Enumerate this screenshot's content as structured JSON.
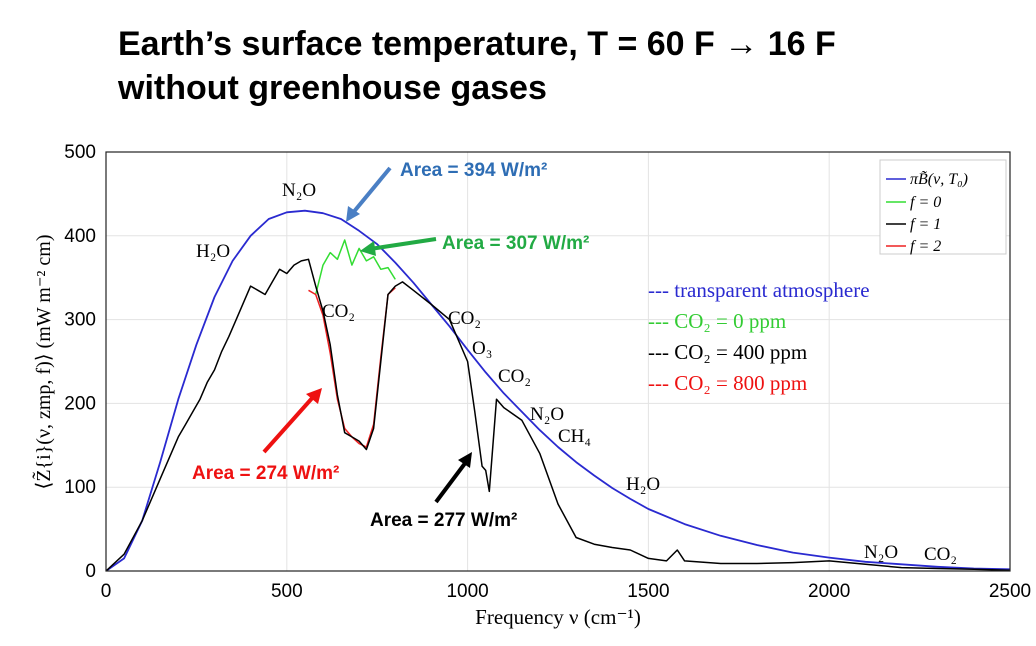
{
  "title": {
    "line1": "Earth’s surface temperature, T = 60 F → 16 F",
    "line2": "without greenhouse gases"
  },
  "chart_data": {
    "type": "line",
    "xlabel": "Frequency ν (cm⁻¹)",
    "ylabel": "⟨Z̃{i}(ν, zmp, f)⟩ (mW m⁻² cm)",
    "xlim": [
      0,
      2500
    ],
    "ylim": [
      0,
      500
    ],
    "x_ticks": [
      "0",
      "500",
      "1000",
      "1500",
      "2000",
      "2500"
    ],
    "y_ticks": [
      "0",
      "100",
      "200",
      "300",
      "400",
      "500"
    ],
    "grid": true,
    "legend_position": "top-right",
    "legend": [
      {
        "label": "πB̃(ν, T₀)",
        "color": "#2a2ad0"
      },
      {
        "label": "f = 0",
        "color": "#33dd33"
      },
      {
        "label": "f = 1",
        "color": "#000000"
      },
      {
        "label": "f = 2",
        "color": "#ee2222"
      }
    ],
    "series": [
      {
        "name": "πB̃(ν, T₀)",
        "color": "#2a2ad0",
        "x": [
          0,
          50,
          100,
          150,
          200,
          250,
          300,
          350,
          400,
          450,
          500,
          550,
          600,
          650,
          700,
          750,
          800,
          850,
          900,
          950,
          1000,
          1050,
          1100,
          1150,
          1200,
          1250,
          1300,
          1350,
          1400,
          1450,
          1500,
          1600,
          1700,
          1800,
          1900,
          2000,
          2100,
          2200,
          2300,
          2400,
          2500
        ],
        "y": [
          0,
          15,
          60,
          130,
          205,
          270,
          327,
          370,
          400,
          420,
          428,
          430,
          427,
          420,
          406,
          390,
          368,
          344,
          318,
          292,
          264,
          237,
          212,
          190,
          168,
          148,
          130,
          114,
          99,
          86,
          74,
          56,
          42,
          31,
          22,
          16,
          11,
          8,
          5,
          3,
          2
        ]
      },
      {
        "name": "f = 0",
        "color": "#33dd33",
        "x": [
          580,
          600,
          620,
          640,
          660,
          680,
          700,
          720,
          740,
          760,
          780,
          800
        ],
        "y": [
          330,
          365,
          380,
          372,
          395,
          365,
          385,
          370,
          375,
          360,
          362,
          348
        ]
      },
      {
        "name": "f = 1",
        "color": "#000000",
        "x": [
          0,
          50,
          100,
          150,
          200,
          220,
          240,
          260,
          280,
          300,
          320,
          340,
          360,
          380,
          400,
          420,
          440,
          460,
          480,
          500,
          520,
          540,
          560,
          580,
          600,
          620,
          640,
          660,
          680,
          700,
          720,
          740,
          760,
          780,
          800,
          820,
          850,
          900,
          950,
          1000,
          1020,
          1040,
          1050,
          1060,
          1080,
          1100,
          1150,
          1200,
          1250,
          1300,
          1350,
          1400,
          1450,
          1500,
          1550,
          1580,
          1600,
          1700,
          1800,
          1900,
          2000,
          2100,
          2200,
          2300,
          2400,
          2500
        ],
        "y": [
          0,
          20,
          60,
          110,
          160,
          175,
          190,
          205,
          225,
          240,
          262,
          280,
          300,
          320,
          340,
          335,
          330,
          345,
          360,
          355,
          365,
          370,
          372,
          340,
          310,
          270,
          210,
          165,
          160,
          155,
          145,
          170,
          250,
          330,
          340,
          345,
          335,
          318,
          300,
          250,
          190,
          125,
          120,
          95,
          205,
          195,
          180,
          140,
          80,
          40,
          32,
          28,
          25,
          15,
          12,
          25,
          12,
          9,
          9,
          10,
          12,
          8,
          4,
          3,
          2,
          1
        ]
      },
      {
        "name": "f = 2",
        "color": "#ee2222",
        "x": [
          560,
          580,
          600,
          620,
          640,
          660,
          680,
          700,
          720,
          740,
          760,
          780,
          800
        ],
        "y": [
          335,
          330,
          305,
          260,
          205,
          170,
          160,
          152,
          148,
          175,
          255,
          330,
          338
        ]
      }
    ],
    "annotations": [
      {
        "text": "Area = 394 W/m²",
        "color": "#2e6db4"
      },
      {
        "text": "Area = 307 W/m²",
        "color": "#22aa44"
      },
      {
        "text": "Area = 274 W/m²",
        "color": "#ee1111"
      },
      {
        "text": "Area = 277 W/m²",
        "color": "#000000"
      },
      {
        "text": "--- transparent atmosphere",
        "color": "#2a2ad0"
      },
      {
        "text": "--- CO₂ = 0 ppm",
        "color": "#33cc33"
      },
      {
        "text": "--- CO₂ = 400 ppm",
        "color": "#000000"
      },
      {
        "text": "--- CO₂ = 800 ppm",
        "color": "#ee1111"
      }
    ],
    "gas_labels": [
      "N₂O",
      "H₂O",
      "CO₂",
      "CO₂",
      "O₃",
      "CO₂",
      "N₂O",
      "CH₄",
      "H₂O",
      "N₂O",
      "CO₂"
    ]
  }
}
